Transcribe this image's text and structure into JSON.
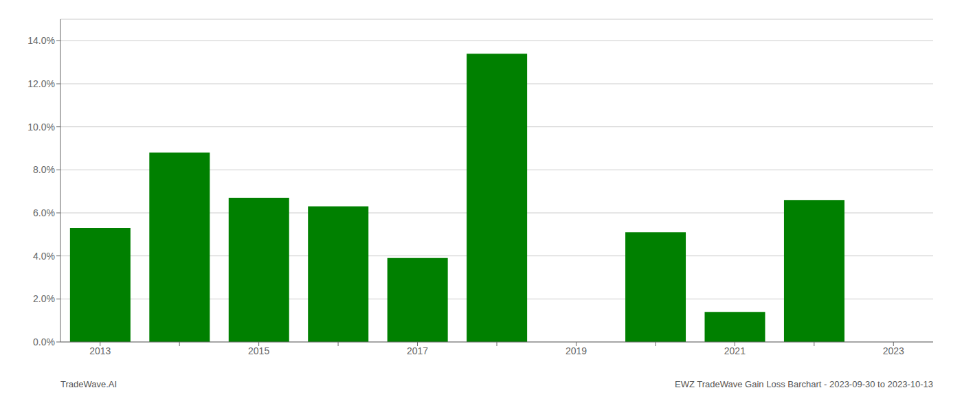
{
  "chart_data": {
    "type": "bar",
    "categories": [
      "2013",
      null,
      "2015",
      null,
      "2017",
      null,
      "2019",
      null,
      "2021",
      null,
      "2023"
    ],
    "values": [
      0.053,
      0.088,
      0.067,
      0.063,
      0.039,
      0.134,
      0.0,
      0.051,
      0.014,
      0.066,
      0.0
    ],
    "color": "#008000",
    "ylim": [
      0,
      0.15
    ],
    "yticks": [
      {
        "value": 0.0,
        "label": "0.0%"
      },
      {
        "value": 0.02,
        "label": "2.0%"
      },
      {
        "value": 0.04,
        "label": "4.0%"
      },
      {
        "value": 0.06,
        "label": "6.0%"
      },
      {
        "value": 0.08,
        "label": "8.0%"
      },
      {
        "value": 0.1,
        "label": "10.0%"
      },
      {
        "value": 0.12,
        "label": "12.0%"
      },
      {
        "value": 0.14,
        "label": "14.0%"
      }
    ],
    "grid": true,
    "annotations": [
      "TradeWave.AI",
      "EWZ TradeWave Gain Loss Barchart - 2023-09-30 to 2023-10-13"
    ]
  }
}
